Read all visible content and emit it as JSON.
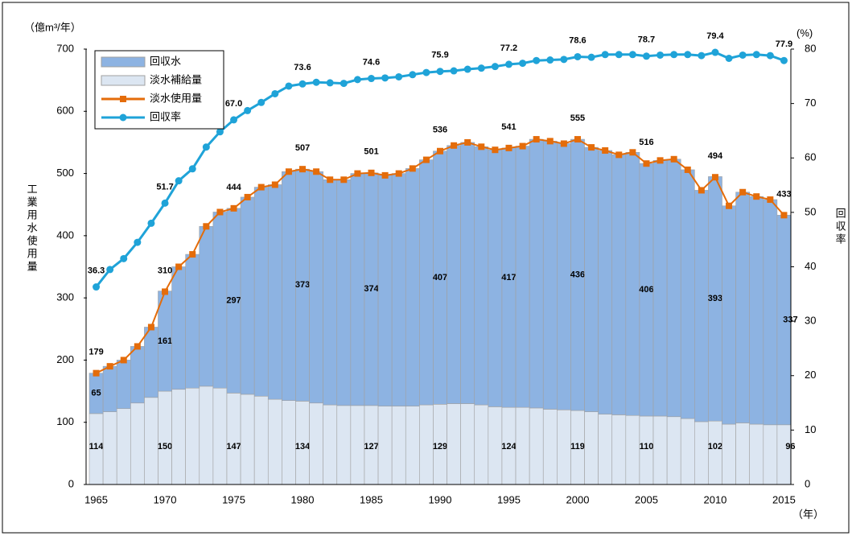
{
  "chart_data": {
    "type": "stacked-bar-line",
    "y_unit": "（億m³/年）",
    "y2_unit": "(%)",
    "ylabel": "工業用水使用量",
    "y2label": "回収率",
    "x_unit": "（年）",
    "categories": [
      "1965",
      null,
      null,
      null,
      null,
      "1970",
      null,
      null,
      null,
      null,
      "1975",
      null,
      null,
      null,
      null,
      "1980",
      null,
      null,
      null,
      null,
      "1985",
      null,
      null,
      null,
      null,
      "1990",
      null,
      null,
      null,
      null,
      "1995",
      null,
      null,
      null,
      null,
      "2000",
      null,
      null,
      null,
      null,
      "2005",
      null,
      null,
      null,
      null,
      "2010",
      null,
      null,
      null,
      null,
      "2015"
    ],
    "ylim": [
      0,
      700
    ],
    "yticks": [
      0,
      100,
      200,
      300,
      400,
      500,
      600,
      700
    ],
    "y2lim": [
      0,
      80
    ],
    "y2ticks": [
      0,
      10,
      20,
      30,
      40,
      50,
      60,
      70,
      80
    ],
    "series": [
      {
        "name": "回収水",
        "kind": "bar",
        "color": "#8db3e2",
        "values": [
          65,
          73,
          78,
          91,
          113,
          161,
          197,
          215,
          257,
          283,
          297,
          317,
          336,
          345,
          368,
          373,
          372,
          362,
          363,
          373,
          374,
          371,
          374,
          382,
          394,
          407,
          415,
          420,
          415,
          413,
          417,
          420,
          432,
          431,
          428,
          436,
          425,
          424,
          418,
          423,
          406,
          411,
          414,
          400,
          372,
          393,
          351,
          371,
          366,
          362,
          337
        ]
      },
      {
        "name": "淡水補給量",
        "kind": "bar",
        "color": "#dce6f2",
        "values": [
          114,
          117,
          122,
          131,
          140,
          150,
          153,
          155,
          158,
          155,
          147,
          145,
          142,
          137,
          135,
          134,
          131,
          128,
          127,
          127,
          127,
          126,
          126,
          126,
          128,
          129,
          130,
          130,
          128,
          125,
          124,
          124,
          123,
          121,
          120,
          119,
          117,
          113,
          112,
          111,
          110,
          110,
          109,
          106,
          101,
          102,
          97,
          99,
          97,
          96,
          96
        ]
      },
      {
        "name": "淡水使用量",
        "kind": "line",
        "color": "#e46c0a",
        "values": [
          179,
          190,
          200,
          222,
          253,
          310,
          350,
          370,
          415,
          438,
          444,
          462,
          478,
          482,
          503,
          507,
          503,
          490,
          490,
          500,
          501,
          497,
          500,
          508,
          522,
          536,
          545,
          550,
          543,
          538,
          541,
          544,
          555,
          552,
          548,
          555,
          542,
          537,
          530,
          534,
          516,
          521,
          523,
          506,
          473,
          494,
          448,
          470,
          463,
          458,
          433
        ]
      },
      {
        "name": "回収率",
        "kind": "line",
        "axis": "y2",
        "color": "#1fa3d8",
        "values": [
          36.3,
          39.5,
          41.5,
          44.5,
          48,
          51.7,
          55.8,
          58,
          62,
          64.8,
          67,
          68.7,
          70.2,
          71.8,
          73.2,
          73.6,
          73.9,
          73.8,
          73.7,
          74.4,
          74.6,
          74.7,
          74.9,
          75.3,
          75.7,
          75.9,
          76,
          76.3,
          76.5,
          76.8,
          77.2,
          77.4,
          77.9,
          78,
          78.1,
          78.6,
          78.5,
          79,
          79,
          79,
          78.7,
          78.9,
          79,
          79,
          78.8,
          79.4,
          78.3,
          78.9,
          79,
          78.8,
          77.9
        ],
        "value_labels": [
          "36.3",
          null,
          null,
          null,
          null,
          "51.7",
          null,
          null,
          null,
          null,
          "67.0",
          null,
          null,
          null,
          null,
          "73.6",
          null,
          null,
          null,
          null,
          "74.6",
          null,
          null,
          null,
          null,
          "75.9",
          null,
          null,
          null,
          null,
          "77.2",
          null,
          null,
          null,
          null,
          "78.6",
          null,
          null,
          null,
          null,
          "78.7",
          null,
          null,
          null,
          null,
          "79.4",
          null,
          null,
          null,
          null,
          "77.9"
        ]
      }
    ]
  }
}
